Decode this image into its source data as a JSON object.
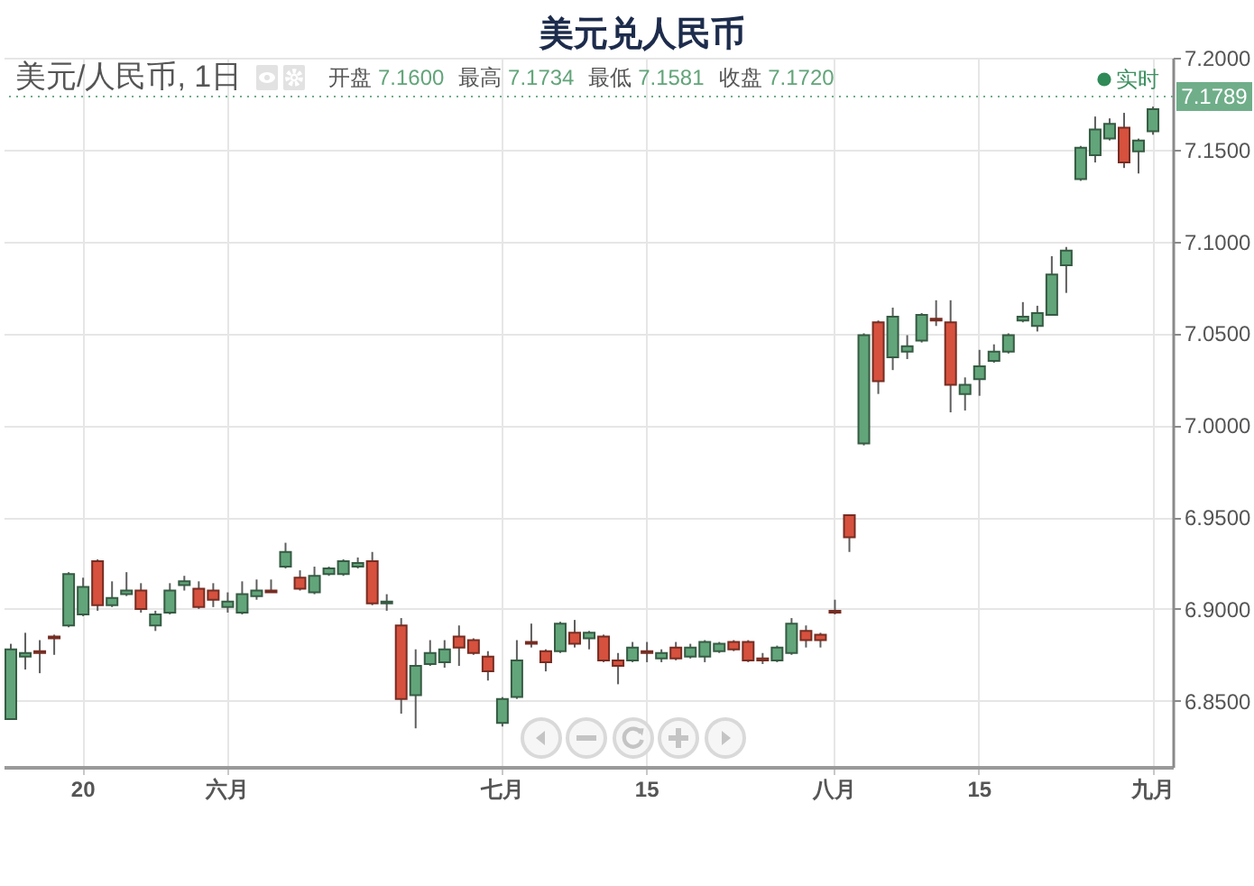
{
  "chart_data": {
    "type": "candlestick",
    "title": "美元兑人民币",
    "subtitle": "美元/人民币, 1日",
    "annotations": [
      "开盘 7.1600",
      "最高 7.1734",
      "最低 7.1581",
      "收盘 7.1720",
      {
        "text": "实时",
        "y": 7.1789
      }
    ],
    "categories": [
      null,
      null,
      null,
      null,
      null,
      "20",
      null,
      null,
      null,
      null,
      null,
      null,
      null,
      null,
      null,
      "六月",
      null,
      null,
      null,
      null,
      null,
      null,
      null,
      null,
      null,
      null,
      null,
      null,
      null,
      null,
      null,
      null,
      null,
      null,
      "七月",
      null,
      null,
      null,
      null,
      null,
      null,
      null,
      null,
      null,
      "15",
      null,
      null,
      null,
      null,
      null,
      null,
      null,
      null,
      null,
      null,
      null,
      null,
      "八月",
      null,
      null,
      null,
      null,
      null,
      null,
      null,
      null,
      null,
      "15",
      null,
      null,
      null,
      null,
      null,
      null,
      null,
      null,
      null,
      null,
      null,
      "九月"
    ],
    "ohlc": [
      [
        6.84,
        6.881,
        6.84,
        6.878
      ],
      [
        6.874,
        6.887,
        6.867,
        6.876
      ],
      [
        6.877,
        6.883,
        6.865,
        6.876
      ],
      [
        6.885,
        6.886,
        6.875,
        6.884
      ],
      [
        6.891,
        6.92,
        6.89,
        6.919
      ],
      [
        6.897,
        6.917,
        6.896,
        6.912
      ],
      [
        6.926,
        6.927,
        6.899,
        6.902
      ],
      [
        6.902,
        6.915,
        6.901,
        6.906
      ],
      [
        6.908,
        6.92,
        6.907,
        6.91
      ],
      [
        6.91,
        6.914,
        6.898,
        6.9
      ],
      [
        6.891,
        6.899,
        6.888,
        6.897
      ],
      [
        6.898,
        6.914,
        6.897,
        6.91
      ],
      [
        6.913,
        6.918,
        6.91,
        6.915
      ],
      [
        6.911,
        6.915,
        6.9,
        6.901
      ],
      [
        6.91,
        6.914,
        6.901,
        6.905
      ],
      [
        6.901,
        6.909,
        6.898,
        6.904
      ],
      [
        6.898,
        6.915,
        6.897,
        6.908
      ],
      [
        6.907,
        6.916,
        6.905,
        6.91
      ],
      [
        6.91,
        6.916,
        6.909,
        6.909
      ],
      [
        6.923,
        6.936,
        6.922,
        6.931
      ],
      [
        6.917,
        6.921,
        6.91,
        6.911
      ],
      [
        6.909,
        6.923,
        6.908,
        6.918
      ],
      [
        6.919,
        6.923,
        6.918,
        6.922
      ],
      [
        6.919,
        6.927,
        6.918,
        6.926
      ],
      [
        6.923,
        6.928,
        6.922,
        6.925
      ],
      [
        6.926,
        6.931,
        6.902,
        6.903
      ],
      [
        6.903,
        6.908,
        6.899,
        6.904
      ],
      [
        6.891,
        6.895,
        6.843,
        6.851
      ],
      [
        6.853,
        6.878,
        6.835,
        6.869
      ],
      [
        6.87,
        6.883,
        6.869,
        6.876
      ],
      [
        6.871,
        6.883,
        6.868,
        6.878
      ],
      [
        6.885,
        6.891,
        6.869,
        6.879
      ],
      [
        6.883,
        6.884,
        6.875,
        6.876
      ],
      [
        6.874,
        6.877,
        6.861,
        6.866
      ],
      [
        6.838,
        6.852,
        6.836,
        6.851
      ],
      [
        6.852,
        6.883,
        6.851,
        6.872
      ],
      [
        6.882,
        6.892,
        6.879,
        6.881
      ],
      [
        6.877,
        6.878,
        6.866,
        6.871
      ],
      [
        6.877,
        6.893,
        6.876,
        6.892
      ],
      [
        6.887,
        6.894,
        6.879,
        6.881
      ],
      [
        6.884,
        6.888,
        6.878,
        6.887
      ],
      [
        6.885,
        6.886,
        6.871,
        6.872
      ],
      [
        6.872,
        6.876,
        6.859,
        6.869
      ],
      [
        6.872,
        6.882,
        6.871,
        6.879
      ],
      [
        6.877,
        6.882,
        6.871,
        6.876
      ],
      [
        6.873,
        6.878,
        6.871,
        6.876
      ],
      [
        6.879,
        6.882,
        6.872,
        6.873
      ],
      [
        6.874,
        6.881,
        6.873,
        6.879
      ],
      [
        6.874,
        6.883,
        6.871,
        6.882
      ],
      [
        6.877,
        6.882,
        6.876,
        6.881
      ],
      [
        6.882,
        6.883,
        6.877,
        6.878
      ],
      [
        6.882,
        6.883,
        6.871,
        6.872
      ],
      [
        6.873,
        6.876,
        6.87,
        6.872
      ],
      [
        6.872,
        6.88,
        6.871,
        6.879
      ],
      [
        6.876,
        6.895,
        6.875,
        6.892
      ],
      [
        6.888,
        6.891,
        6.879,
        6.883
      ],
      [
        6.886,
        6.887,
        6.879,
        6.883
      ],
      [
        6.899,
        6.905,
        6.897,
        6.898
      ],
      [
        6.951,
        6.951,
        6.931,
        6.939
      ],
      [
        6.99,
        7.05,
        6.989,
        7.049
      ],
      [
        7.056,
        7.057,
        7.017,
        7.024
      ],
      [
        7.037,
        7.064,
        7.03,
        7.059
      ],
      [
        7.04,
        7.049,
        7.036,
        7.043
      ],
      [
        7.046,
        7.061,
        7.045,
        7.06
      ],
      [
        7.058,
        7.068,
        7.054,
        7.057
      ],
      [
        7.056,
        7.068,
        7.007,
        7.022
      ],
      [
        7.017,
        7.026,
        7.008,
        7.022
      ],
      [
        7.025,
        7.041,
        7.016,
        7.032
      ],
      [
        7.035,
        7.044,
        7.034,
        7.04
      ],
      [
        7.04,
        7.05,
        7.039,
        7.049
      ],
      [
        7.057,
        7.067,
        7.056,
        7.059
      ],
      [
        7.054,
        7.065,
        7.051,
        7.061
      ],
      [
        7.06,
        7.092,
        7.06,
        7.082
      ],
      [
        7.087,
        7.097,
        7.072,
        7.095
      ],
      [
        7.134,
        7.152,
        7.133,
        7.151
      ],
      [
        7.147,
        7.168,
        7.143,
        7.161
      ],
      [
        7.156,
        7.167,
        7.155,
        7.164
      ],
      [
        7.162,
        7.17,
        7.14,
        7.143
      ],
      [
        7.149,
        7.156,
        7.137,
        7.155
      ],
      [
        7.16,
        7.1734,
        7.1581,
        7.172
      ]
    ],
    "colors": [
      "#62a57a",
      "#62a57a",
      "#d6513e",
      "#d6513e",
      "#62a57a",
      "#62a57a",
      "#d6513e",
      "#62a57a",
      "#62a57a",
      "#d6513e",
      "#62a57a",
      "#62a57a",
      "#62a57a",
      "#d6513e",
      "#d6513e",
      "#62a57a",
      "#62a57a",
      "#62a57a",
      "#d6513e",
      "#62a57a",
      "#d6513e",
      "#62a57a",
      "#62a57a",
      "#62a57a",
      "#62a57a",
      "#d6513e",
      "#62a57a",
      "#d6513e",
      "#62a57a",
      "#62a57a",
      "#62a57a",
      "#d6513e",
      "#d6513e",
      "#d6513e",
      "#62a57a",
      "#62a57a",
      "#d6513e",
      "#d6513e",
      "#62a57a",
      "#d6513e",
      "#62a57a",
      "#d6513e",
      "#d6513e",
      "#62a57a",
      "#d6513e",
      "#62a57a",
      "#d6513e",
      "#62a57a",
      "#62a57a",
      "#62a57a",
      "#d6513e",
      "#d6513e",
      "#d6513e",
      "#62a57a",
      "#62a57a",
      "#d6513e",
      "#d6513e",
      "#d6513e",
      "#d6513e",
      "#62a57a",
      "#d6513e",
      "#62a57a",
      "#62a57a",
      "#62a57a",
      "#d6513e",
      "#d6513e",
      "#62a57a",
      "#62a57a",
      "#62a57a",
      "#62a57a",
      "#62a57a",
      "#62a57a",
      "#62a57a",
      "#62a57a",
      "#62a57a",
      "#62a57a",
      "#62a57a",
      "#d6513e",
      "#62a57a",
      "#62a57a"
    ],
    "ylim": [
      6.814,
      7.2
    ],
    "yticks": [
      {
        "value": 6.85,
        "label": "6.8500"
      },
      {
        "value": 6.9,
        "label": "6.9000"
      },
      {
        "value": 6.95,
        "label": "6.9500"
      },
      {
        "value": 7.0,
        "label": "7.0000"
      },
      {
        "value": 7.05,
        "label": "7.0500"
      },
      {
        "value": 7.1,
        "label": "7.1000"
      },
      {
        "value": 7.15,
        "label": "7.1500"
      },
      {
        "value": 7.2,
        "label": "7.2000"
      }
    ],
    "ref_lines": [
      {
        "axis": "y",
        "value": 7.1789,
        "label": "7.1789",
        "color": "#6fae89",
        "line_style": "dotted"
      }
    ],
    "grid": true
  }
}
